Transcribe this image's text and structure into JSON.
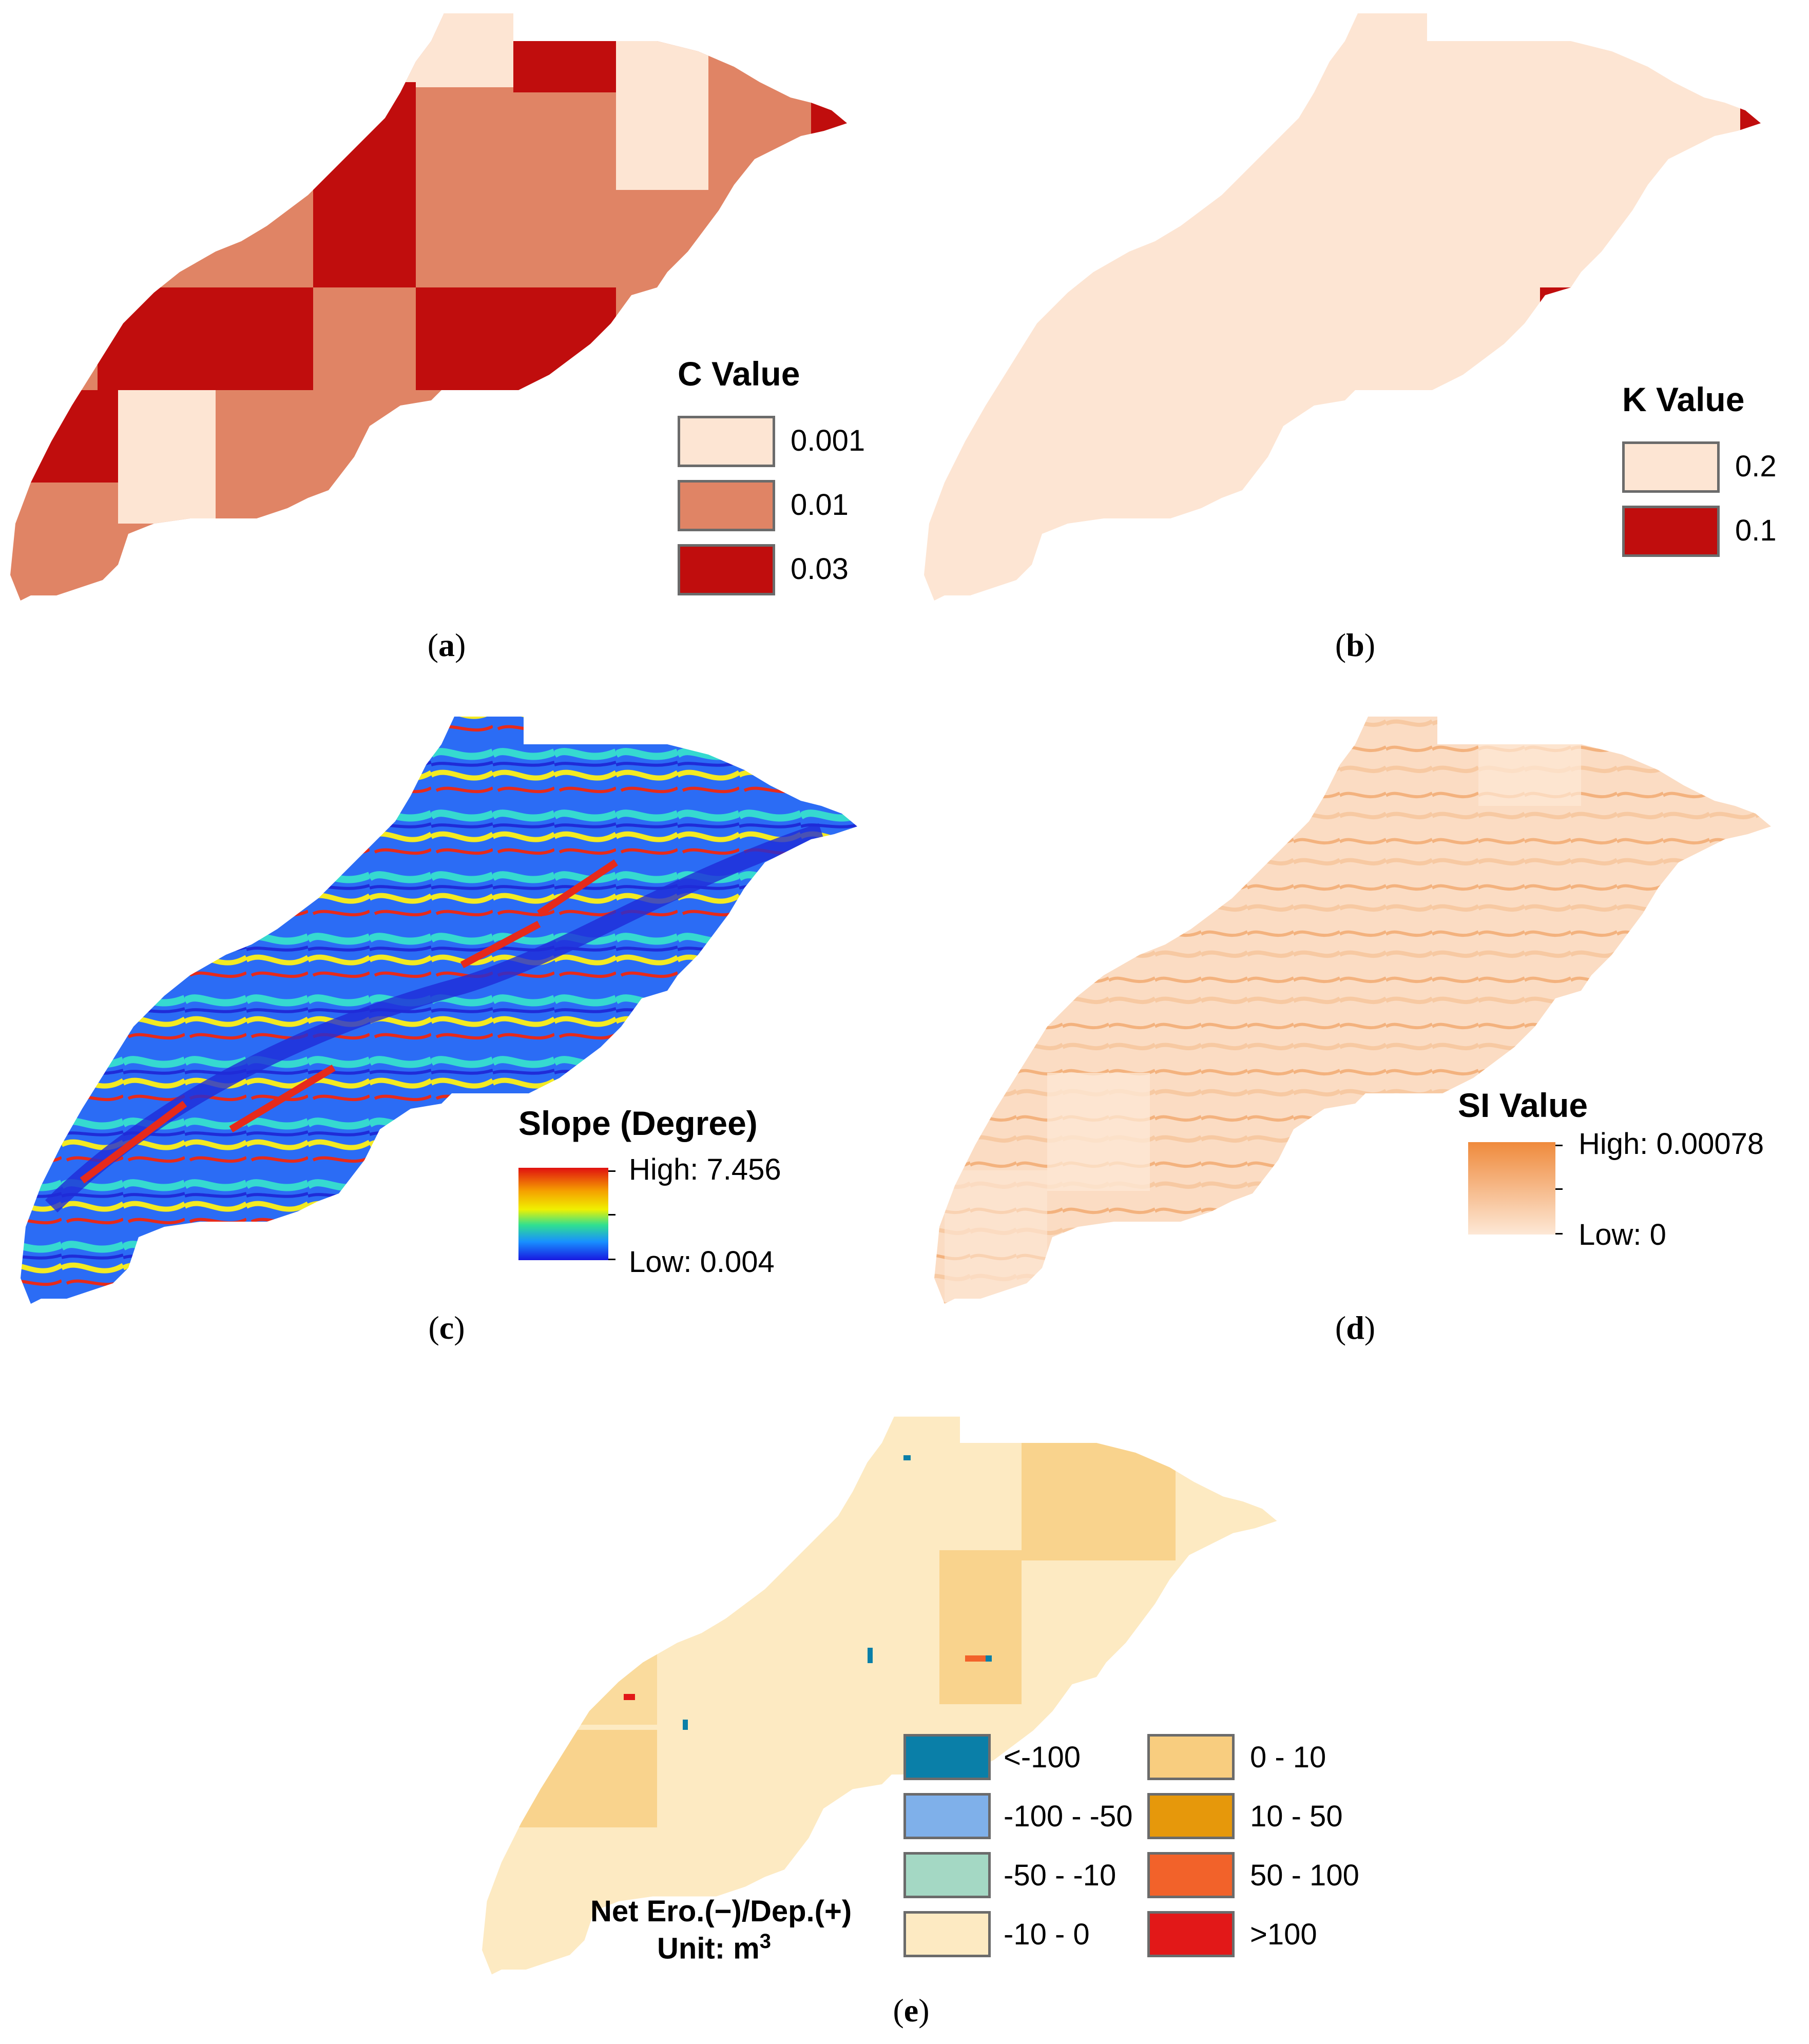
{
  "colors": {
    "c_low": "#fde5d3",
    "c_mid": "#e08465",
    "c_high": "#c00d0d",
    "k_low": "#fde5d3",
    "k_high": "#c00d0d",
    "si_low": "#fde8d6",
    "si_high": "#ef8a3c",
    "ero_lt_neg100": "#0a7fa8",
    "ero_neg100_neg50": "#7fb0ea",
    "ero_neg50_neg10": "#a4d8c4",
    "ero_neg10_0": "#fdeac2",
    "dep_0_10": "#f8cd7f",
    "dep_10_50": "#e6980b",
    "dep_50_100": "#f2622a",
    "dep_gt100": "#e21818"
  },
  "panels": {
    "a": {
      "label": "a",
      "legend_title": "C Value",
      "classes": [
        "0.001",
        "0.01",
        "0.03"
      ]
    },
    "b": {
      "label": "b",
      "legend_title": "K Value",
      "classes": [
        "0.2",
        "0.1"
      ]
    },
    "c": {
      "label": "c",
      "legend_title": "Slope (Degree)",
      "high": "High: 7.456",
      "low": "Low: 0.004"
    },
    "d": {
      "label": "d",
      "legend_title": "SI Value",
      "high": "High: 0.00078",
      "low": "Low: 0"
    },
    "e": {
      "label": "e",
      "legend_title": "Net Ero.(−)/Dep.(+)",
      "unit": "Unit: m",
      "unit_sup": "3",
      "classes_left": [
        "<-100",
        "-100 - -50",
        "-50 - -10",
        "-10 - 0"
      ],
      "classes_right": [
        "0 - 10",
        "10 - 50",
        "50 - 100",
        ">100"
      ]
    }
  }
}
